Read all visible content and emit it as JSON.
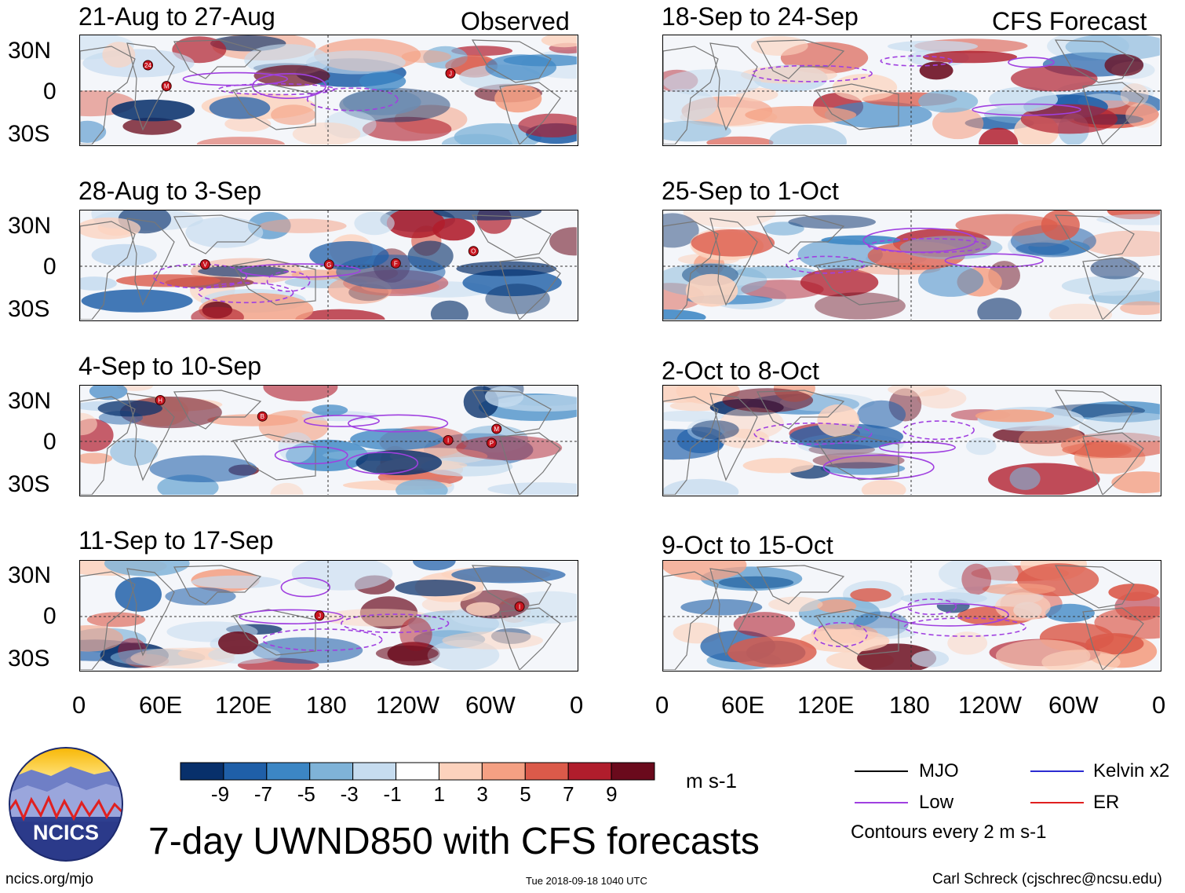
{
  "panels": {
    "left": [
      {
        "title": "21-Aug to 27-Aug",
        "tag": "Observed"
      },
      {
        "title": "28-Aug to 3-Sep",
        "tag": ""
      },
      {
        "title": "4-Sep to 10-Sep",
        "tag": ""
      },
      {
        "title": "11-Sep to 17-Sep",
        "tag": ""
      }
    ],
    "right": [
      {
        "title": "18-Sep to 24-Sep",
        "tag": "CFS Forecast"
      },
      {
        "title": "25-Sep to 1-Oct",
        "tag": ""
      },
      {
        "title": "2-Oct to 8-Oct",
        "tag": ""
      },
      {
        "title": "9-Oct to 15-Oct",
        "tag": ""
      }
    ]
  },
  "axes": {
    "y_ticks": [
      "30N",
      "0",
      "30S"
    ],
    "x_ticks": [
      "0",
      "60E",
      "120E",
      "180",
      "120W",
      "60W",
      "0"
    ]
  },
  "colorbar": {
    "labels": [
      "-9",
      "-7",
      "-5",
      "-3",
      "-1",
      "1",
      "3",
      "5",
      "7",
      "9"
    ],
    "units": "m s-1",
    "colors": [
      "#08306b",
      "#1f5fa8",
      "#3c86c4",
      "#7fb3d8",
      "#c6dcef",
      "#ffffff",
      "#fcd2bd",
      "#f4a083",
      "#db5a4a",
      "#b01d2c",
      "#6a0a1c"
    ]
  },
  "legend": {
    "items": [
      {
        "label": "MJO",
        "color": "#000000"
      },
      {
        "label": "Kelvin x2",
        "color": "#2b2bd1"
      },
      {
        "label": "Low",
        "color": "#a040e0"
      },
      {
        "label": "ER",
        "color": "#e02020"
      }
    ],
    "note": "Contours every 2 m s-1"
  },
  "main_title": "7-day UWND850 with CFS forecasts",
  "logo_text": "NCICS",
  "footer": {
    "url": "ncics.org/mjo",
    "timestamp": "Tue 2018-09-18 1040 UTC",
    "credit": "Carl Schreck (cjschrec@ncsu.edu)"
  },
  "storm_markers": {
    "observed_1": [
      "24",
      "J",
      "M"
    ],
    "observed_2": [
      "V",
      "O",
      "G",
      "F"
    ],
    "observed_3": [
      "B",
      "M",
      "P",
      "I",
      "H"
    ],
    "observed_4": [
      "J",
      "I"
    ]
  },
  "chart_data": {
    "type": "heatmap",
    "variable": "850-hPa zonal wind anomaly (UWND850), 7-day means",
    "units": "m s-1",
    "color_levels": [
      -9,
      -7,
      -5,
      -3,
      -1,
      1,
      3,
      5,
      7,
      9
    ],
    "contour_interval": "2 m s-1",
    "x_axis_ticks": [
      "0",
      "60E",
      "120E",
      "180",
      "120W",
      "60W",
      "0"
    ],
    "y_axis_ticks": [
      "30N",
      "0",
      "30S"
    ],
    "observed_periods": [
      "21-Aug to 27-Aug",
      "28-Aug to 3-Sep",
      "4-Sep to 10-Sep",
      "11-Sep to 17-Sep"
    ],
    "forecast_periods": [
      "18-Sep to 24-Sep",
      "25-Sep to 1-Oct",
      "2-Oct to 8-Oct",
      "9-Oct to 15-Oct"
    ]
  }
}
